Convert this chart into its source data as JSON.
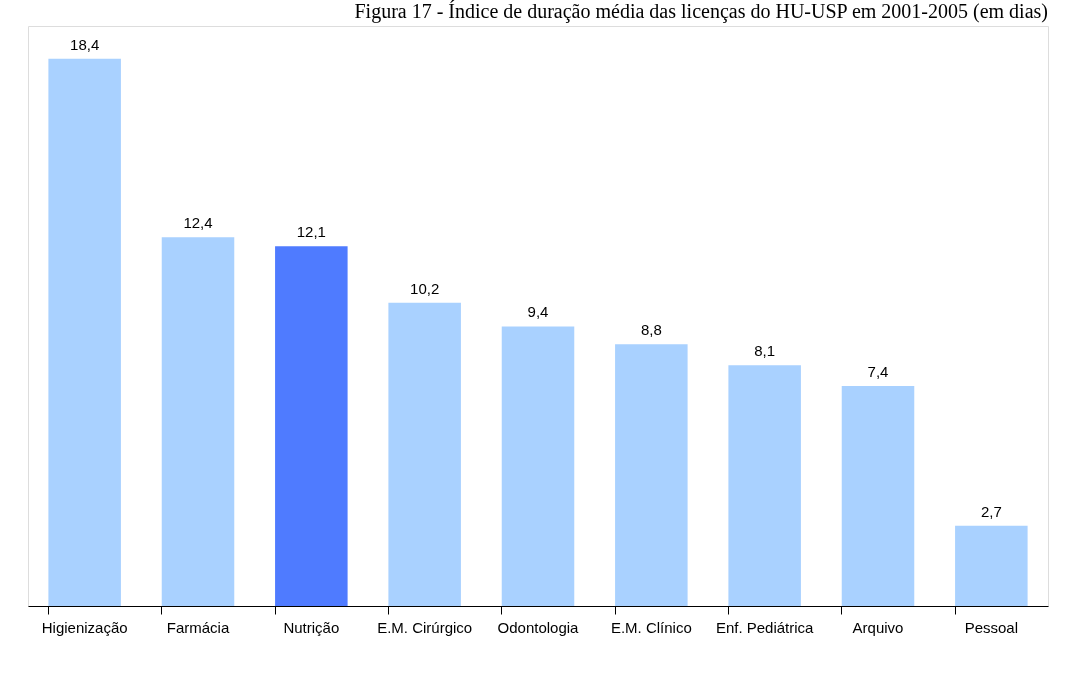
{
  "chart_data": {
    "type": "bar",
    "title": "Figura 17 - Índice de duração média das licenças do HU-USP em 2001-2005 (em dias)",
    "categories": [
      "Higienização",
      "Farmácia",
      "Nutrição",
      "E.M. Cirúrgico",
      "Odontologia",
      "E.M. Clínico",
      "Enf. Pediátrica",
      "Arquivo",
      "Pessoal"
    ],
    "values": [
      18.4,
      12.4,
      12.1,
      10.2,
      9.4,
      8.8,
      8.1,
      7.4,
      2.7
    ],
    "colors": [
      "#a9d1ff",
      "#a9d1ff",
      "#4f7bff",
      "#a9d1ff",
      "#a9d1ff",
      "#a9d1ff",
      "#a9d1ff",
      "#a9d1ff",
      "#a9d1ff"
    ],
    "value_labels": [
      "18,4",
      "12,4",
      "12,1",
      "10,2",
      "9,4",
      "8,8",
      "8,1",
      "7,4",
      "2,7"
    ],
    "grid": false
  }
}
